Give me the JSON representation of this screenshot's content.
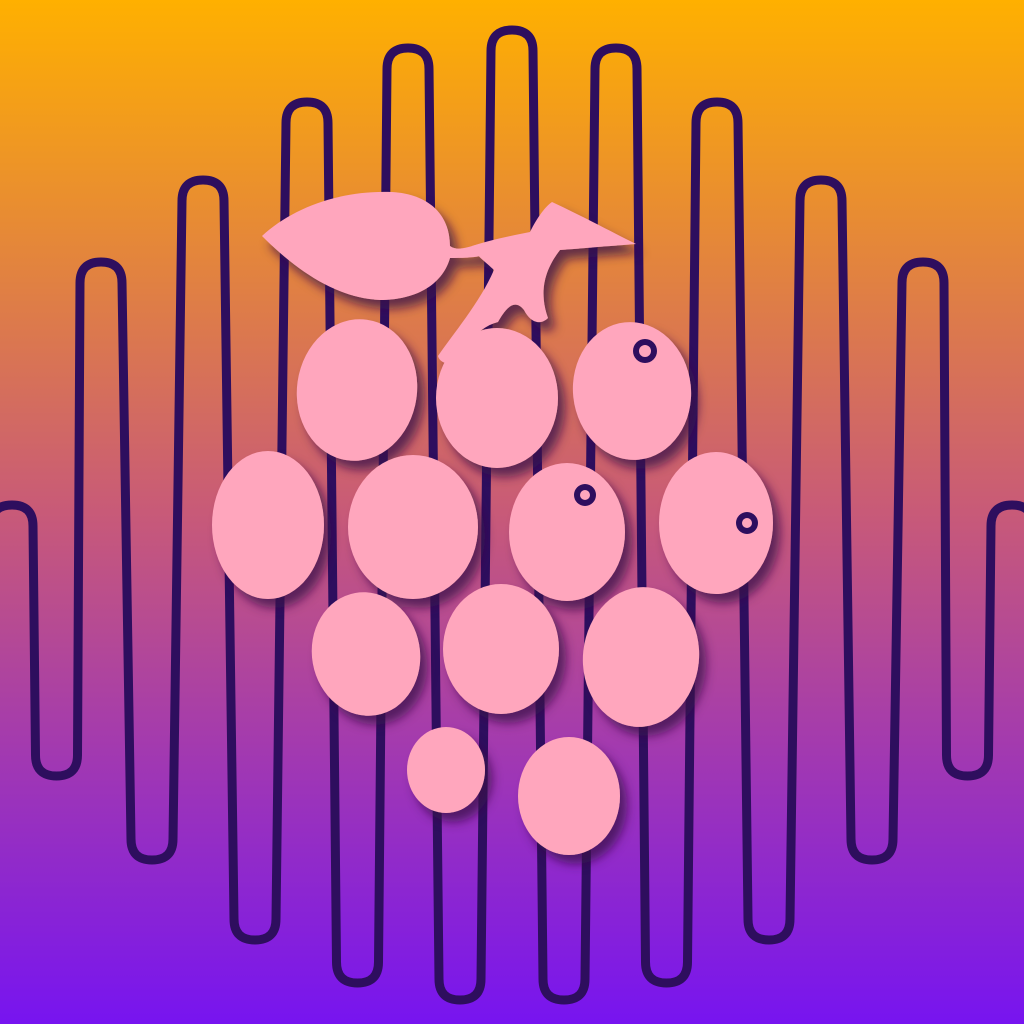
{
  "icon": {
    "subject": "grape-bunch-with-sound-wave",
    "background_gradient": {
      "top": "#FFB000",
      "middle": "#C85A78",
      "bottom": "#7714F0"
    },
    "wave_color": "#2E0E5E",
    "grape_color": "#FFA6BD",
    "shadow_color": "#3A0C4A"
  }
}
